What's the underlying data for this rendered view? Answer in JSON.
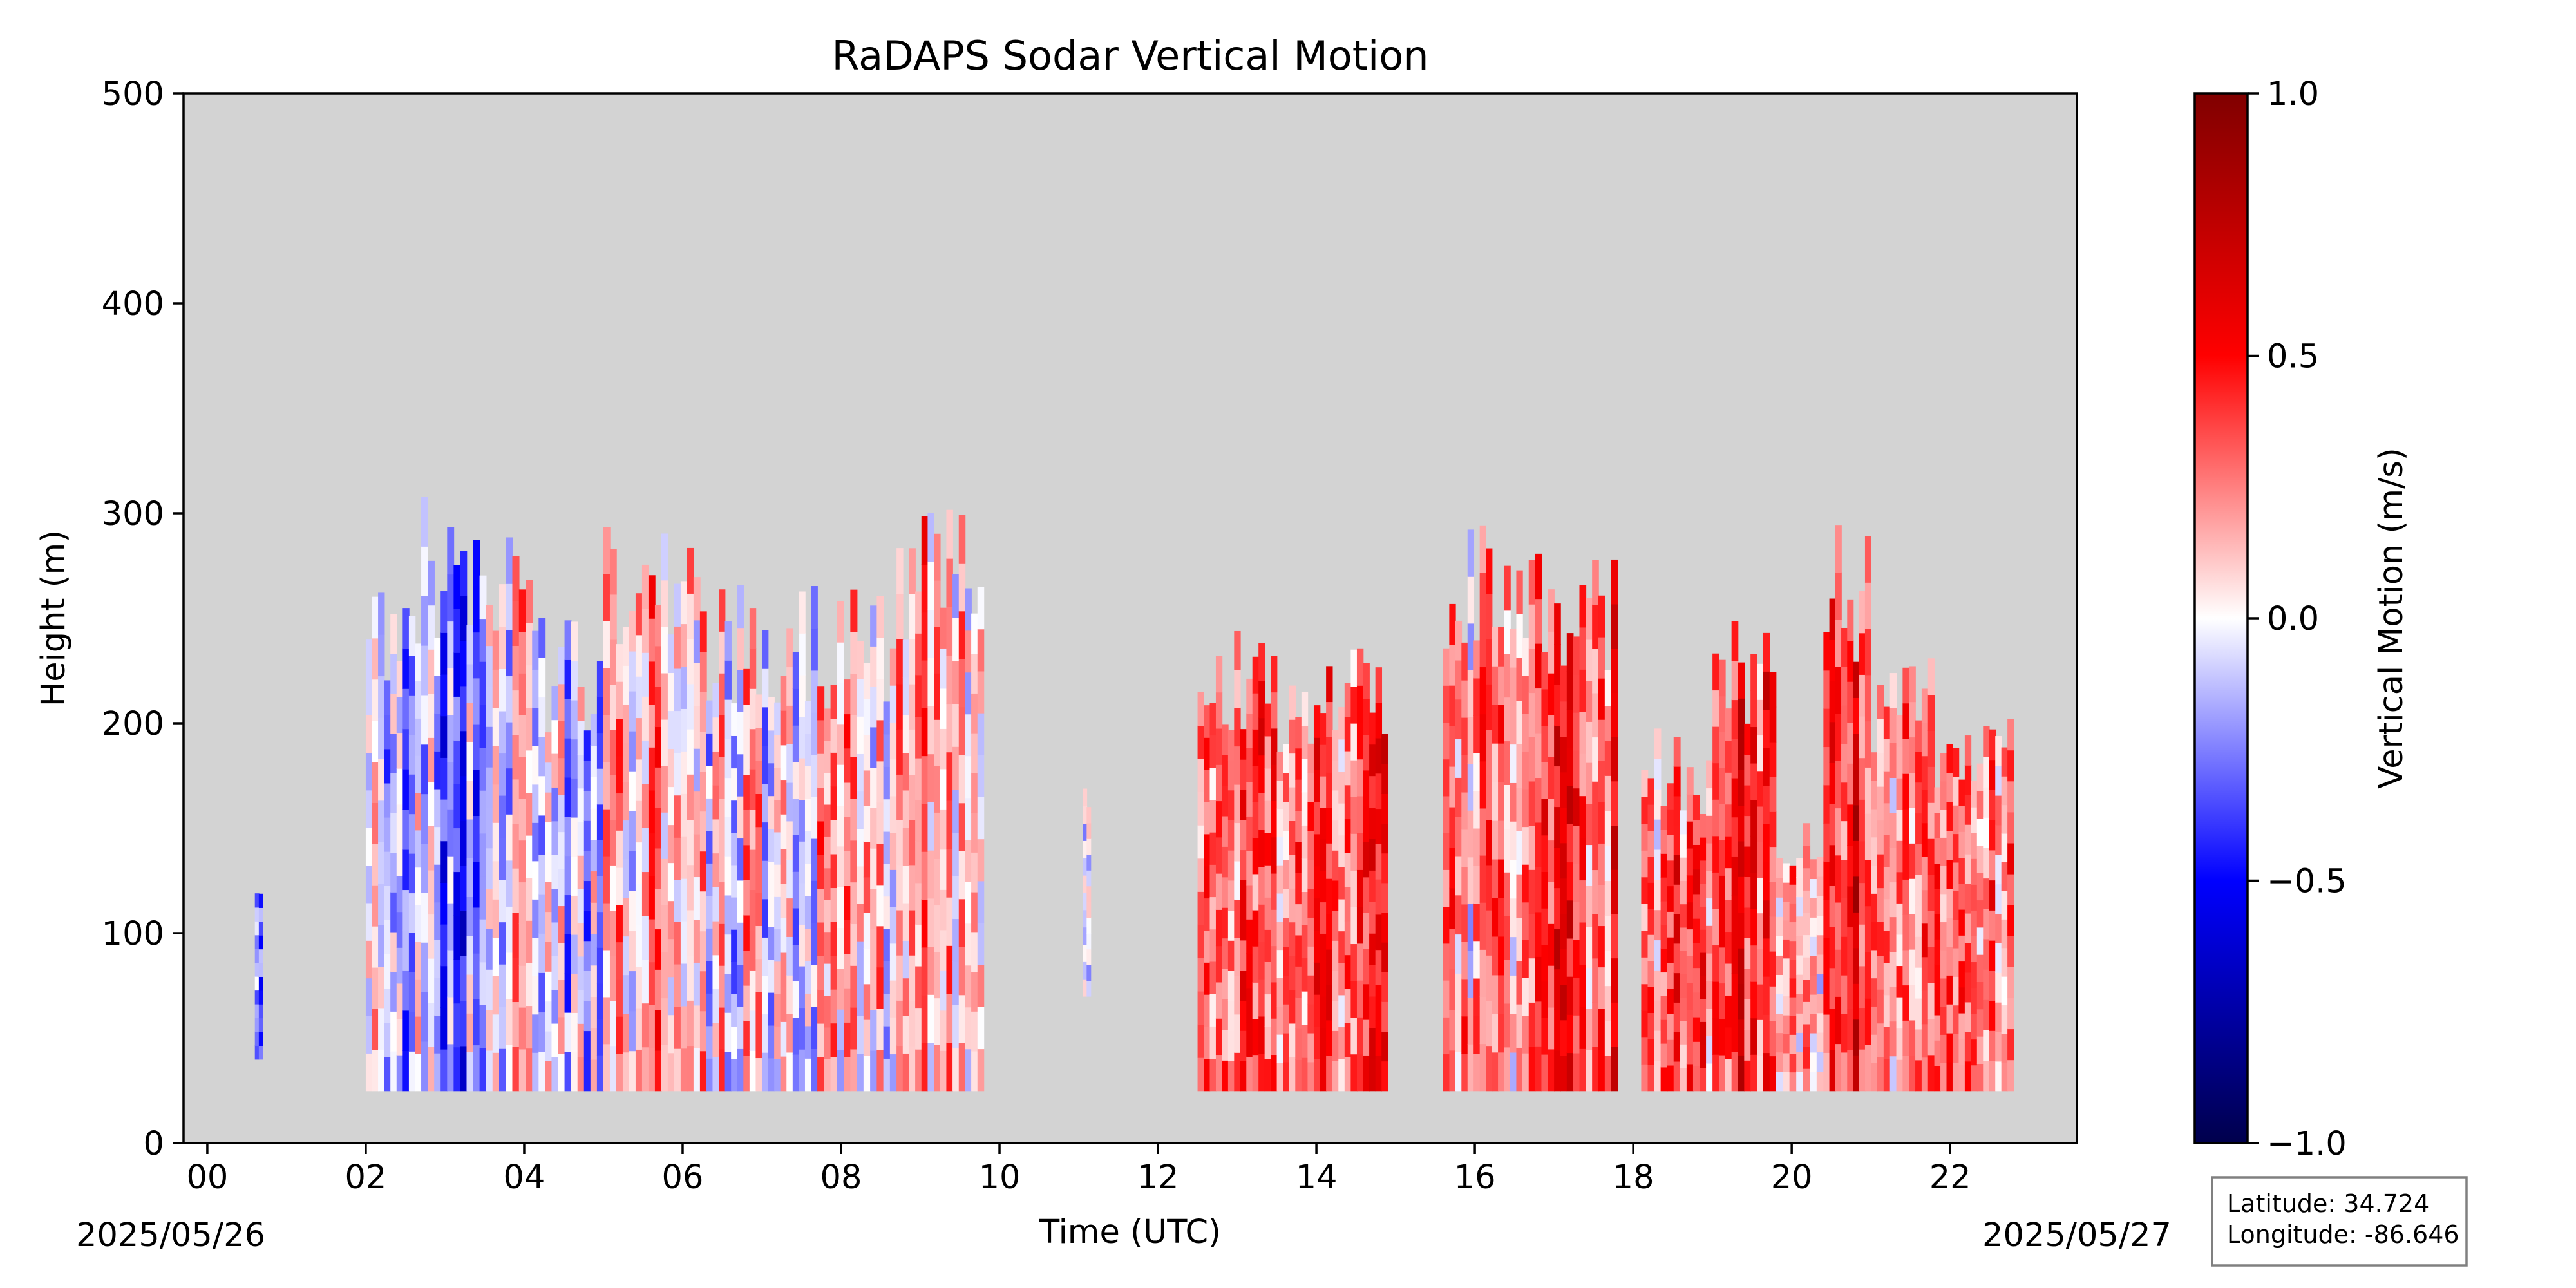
{
  "chart_data": {
    "type": "heatmap",
    "title": "RaDAPS Sodar Vertical Motion",
    "xlabel": "Time (UTC)",
    "ylabel": "Height (m)",
    "xlim": [
      -0.3,
      23.6
    ],
    "ylim": [
      0,
      500
    ],
    "x_ticks": [
      {
        "value": 0,
        "label": "00"
      },
      {
        "value": 2,
        "label": "02"
      },
      {
        "value": 4,
        "label": "04"
      },
      {
        "value": 6,
        "label": "06"
      },
      {
        "value": 8,
        "label": "08"
      },
      {
        "value": 10,
        "label": "10"
      },
      {
        "value": 12,
        "label": "12"
      },
      {
        "value": 14,
        "label": "14"
      },
      {
        "value": 16,
        "label": "16"
      },
      {
        "value": 18,
        "label": "18"
      },
      {
        "value": 20,
        "label": "20"
      },
      {
        "value": 22,
        "label": "22"
      }
    ],
    "y_ticks": [
      {
        "value": 0,
        "label": "0"
      },
      {
        "value": 100,
        "label": "100"
      },
      {
        "value": 200,
        "label": "200"
      },
      {
        "value": 300,
        "label": "300"
      },
      {
        "value": 400,
        "label": "400"
      },
      {
        "value": 500,
        "label": "500"
      }
    ],
    "date_labels": {
      "start": "2025/05/26",
      "end": "2025/05/27"
    },
    "background_color": "#d3d3d3",
    "colormap": "seismic",
    "colorbar": {
      "label": "Vertical Motion (m/s)",
      "range": [
        -1.0,
        1.0
      ],
      "ticks": [
        {
          "value": 1.0,
          "label": "1.0"
        },
        {
          "value": 0.5,
          "label": "0.5"
        },
        {
          "value": 0.0,
          "label": "0.0"
        },
        {
          "value": -0.5,
          "label": "−0.5"
        },
        {
          "value": -1.0,
          "label": "−1.0"
        }
      ]
    },
    "data_regions": [
      {
        "x0": 0.6,
        "x1": 0.7,
        "y_min": 40,
        "y_max": 130,
        "mean_w": -0.2
      },
      {
        "x0": 2.0,
        "x1": 2.7,
        "y_min": 25,
        "y_max": 265,
        "mean_w": -0.05
      },
      {
        "x0": 2.7,
        "x1": 3.6,
        "y_min": 25,
        "y_max": 310,
        "mean_w": -0.25
      },
      {
        "x0": 3.6,
        "x1": 4.1,
        "y_min": 25,
        "y_max": 300,
        "mean_w": 0.1
      },
      {
        "x0": 4.1,
        "x1": 5.0,
        "y_min": 25,
        "y_max": 250,
        "mean_w": -0.1
      },
      {
        "x0": 5.0,
        "x1": 6.3,
        "y_min": 25,
        "y_max": 300,
        "mean_w": 0.15
      },
      {
        "x0": 6.3,
        "x1": 7.7,
        "y_min": 25,
        "y_max": 270,
        "mean_w": 0.05
      },
      {
        "x0": 7.7,
        "x1": 8.7,
        "y_min": 25,
        "y_max": 265,
        "mean_w": 0.1
      },
      {
        "x0": 8.7,
        "x1": 9.8,
        "y_min": 25,
        "y_max": 310,
        "mean_w": 0.2
      },
      {
        "x0": 11.05,
        "x1": 11.15,
        "y_min": 70,
        "y_max": 170,
        "mean_w": 0.1
      },
      {
        "x0": 12.5,
        "x1": 13.5,
        "y_min": 25,
        "y_max": 245,
        "mean_w": 0.25
      },
      {
        "x0": 13.5,
        "x1": 14.2,
        "y_min": 25,
        "y_max": 235,
        "mean_w": 0.3
      },
      {
        "x0": 14.2,
        "x1": 14.9,
        "y_min": 25,
        "y_max": 250,
        "mean_w": 0.35
      },
      {
        "x0": 15.6,
        "x1": 16.6,
        "y_min": 25,
        "y_max": 295,
        "mean_w": 0.2
      },
      {
        "x0": 16.6,
        "x1": 17.8,
        "y_min": 25,
        "y_max": 290,
        "mean_w": 0.35
      },
      {
        "x0": 18.1,
        "x1": 19.0,
        "y_min": 25,
        "y_max": 200,
        "mean_w": 0.3
      },
      {
        "x0": 19.0,
        "x1": 19.8,
        "y_min": 25,
        "y_max": 250,
        "mean_w": 0.45
      },
      {
        "x0": 19.8,
        "x1": 20.4,
        "y_min": 25,
        "y_max": 160,
        "mean_w": 0.1
      },
      {
        "x0": 20.4,
        "x1": 21.0,
        "y_min": 25,
        "y_max": 295,
        "mean_w": 0.5
      },
      {
        "x0": 21.0,
        "x1": 21.8,
        "y_min": 25,
        "y_max": 235,
        "mean_w": 0.3
      },
      {
        "x0": 21.8,
        "x1": 22.8,
        "y_min": 25,
        "y_max": 205,
        "mean_w": 0.25
      }
    ]
  },
  "info_box": {
    "latitude": "Latitude: 34.724",
    "longitude": "Longitude: -86.646"
  }
}
